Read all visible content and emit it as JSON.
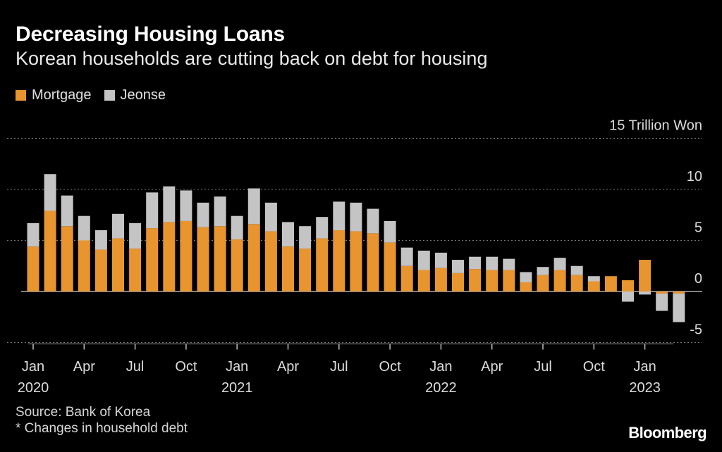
{
  "title": "Decreasing Housing Loans",
  "subtitle": "Korean households are cutting back on debt for housing",
  "source": "Source: Bank of Korea",
  "note": "* Changes in household debt",
  "brand": "Bloomberg",
  "colors": {
    "mortgage": "#e8952f",
    "jeonse": "#c4c4c4",
    "background": "#000000",
    "grid": "#777777",
    "text": "#e6e6e6"
  },
  "chart_data": {
    "type": "bar",
    "stacked": true,
    "unit_label": "15 Trillion Won",
    "ylim": [
      -5,
      15
    ],
    "yticks": [
      {
        "value": 15,
        "label": "15 Trillion Won"
      },
      {
        "value": 10,
        "label": "10"
      },
      {
        "value": 5,
        "label": "5"
      },
      {
        "value": 0,
        "label": "0"
      },
      {
        "value": -5,
        "label": "-5"
      }
    ],
    "legend": [
      {
        "name": "Mortgage",
        "color": "#e8952f"
      },
      {
        "name": "Jeonse",
        "color": "#c4c4c4"
      }
    ],
    "categories": [
      "2020-01",
      "2020-02",
      "2020-03",
      "2020-04",
      "2020-05",
      "2020-06",
      "2020-07",
      "2020-08",
      "2020-09",
      "2020-10",
      "2020-11",
      "2020-12",
      "2021-01",
      "2021-02",
      "2021-03",
      "2021-04",
      "2021-05",
      "2021-06",
      "2021-07",
      "2021-08",
      "2021-09",
      "2021-10",
      "2021-11",
      "2021-12",
      "2022-01",
      "2022-02",
      "2022-03",
      "2022-04",
      "2022-05",
      "2022-06",
      "2022-07",
      "2022-08",
      "2022-09",
      "2022-10",
      "2022-11",
      "2022-12",
      "2023-01"
    ],
    "xtick_labels": [
      {
        "index": 0,
        "month": "Jan",
        "year": "2020"
      },
      {
        "index": 3,
        "month": "Apr",
        "year": ""
      },
      {
        "index": 6,
        "month": "Jul",
        "year": ""
      },
      {
        "index": 9,
        "month": "Oct",
        "year": ""
      },
      {
        "index": 12,
        "month": "Jan",
        "year": "2021"
      },
      {
        "index": 15,
        "month": "Apr",
        "year": ""
      },
      {
        "index": 18,
        "month": "Jul",
        "year": ""
      },
      {
        "index": 21,
        "month": "Oct",
        "year": ""
      },
      {
        "index": 24,
        "month": "Jan",
        "year": "2022"
      },
      {
        "index": 27,
        "month": "Apr",
        "year": ""
      },
      {
        "index": 30,
        "month": "Jul",
        "year": ""
      },
      {
        "index": 33,
        "month": "Oct",
        "year": ""
      },
      {
        "index": 36,
        "month": "Jan",
        "year": "2023"
      }
    ],
    "series": [
      {
        "name": "Mortgage",
        "values": [
          4.4,
          7.9,
          6.4,
          5.0,
          4.1,
          5.2,
          4.2,
          6.2,
          6.8,
          6.9,
          6.3,
          6.4,
          5.1,
          6.6,
          5.9,
          4.4,
          4.2,
          5.2,
          6.0,
          5.9,
          5.7,
          4.8,
          2.5,
          2.1,
          2.3,
          1.8,
          2.2,
          2.1,
          2.1,
          0.9,
          1.6,
          2.1,
          1.6,
          1.0,
          1.5,
          1.1,
          3.1
        ]
      },
      {
        "name": "Jeonse",
        "values": [
          2.3,
          3.6,
          3.0,
          2.4,
          1.9,
          2.4,
          2.5,
          3.5,
          3.5,
          3.0,
          2.4,
          2.9,
          2.3,
          3.5,
          2.8,
          2.4,
          2.2,
          2.1,
          2.8,
          2.8,
          2.4,
          2.1,
          1.8,
          1.9,
          1.5,
          1.3,
          1.2,
          1.3,
          1.1,
          1.0,
          0.8,
          1.2,
          0.9,
          0.5,
          0.0,
          -1.0,
          -0.3
        ]
      }
    ],
    "trailing": [
      {
        "category": "2023-02",
        "mortgage": -0.2,
        "jeonse": -1.7
      },
      {
        "category": "2023-03",
        "mortgage": -0.2,
        "jeonse": -2.8
      }
    ]
  }
}
